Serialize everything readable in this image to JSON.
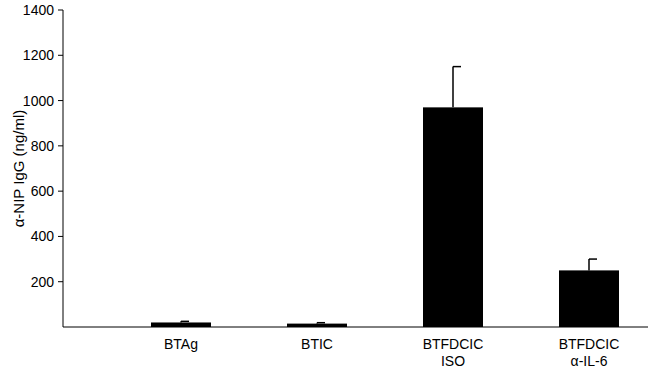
{
  "chart_data": {
    "type": "bar",
    "y_label": "α-NIP IgG (ng/ml)",
    "categories": [
      "BTAg",
      "BTIC",
      "BTFDCIC ISO",
      "BTFDCIC α-IL-6"
    ],
    "values": [
      20,
      15,
      970,
      250
    ],
    "errors": [
      5,
      4,
      180,
      50
    ],
    "color": "#000000",
    "ylim": [
      0,
      1400
    ],
    "yticks": [
      200,
      400,
      600,
      800,
      1000,
      1200,
      1400
    ],
    "grid": false
  }
}
